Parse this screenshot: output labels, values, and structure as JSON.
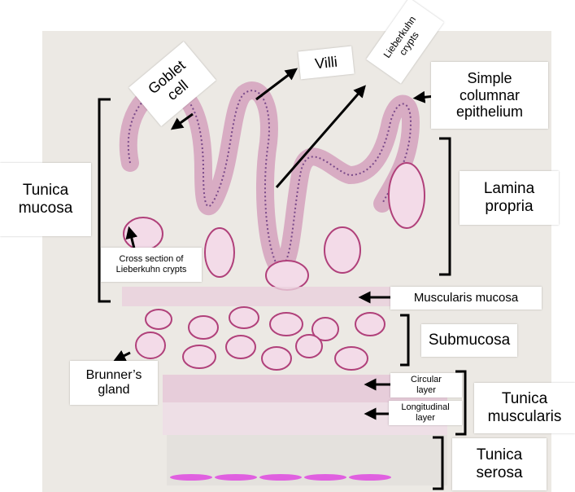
{
  "labels": {
    "goblet": "Goblet\ncell",
    "villi": "Villi",
    "crypts": "Lieberkuhn\ncrypts",
    "simple_columnar": "Simple\ncolumnar\nepithelium",
    "tunica_mucosa": "Tunica\nmucosa",
    "lamina_propria": "Lamina\npropria",
    "cross_section": "Cross section of\nLieberkuhn  crypts",
    "muscularis_mucosa": "Muscularis mucosa",
    "submucosa": "Submucosa",
    "brunner": "Brunner’s\ngland",
    "circular": "Circular\nlayer",
    "longitudinal": "Longitudinal\nlayer",
    "tunica_muscularis": "Tunica\nmuscularis",
    "tunica_serosa": "Tunica\nserosa"
  },
  "colors": {
    "tissue_fill": "#f3dbe8",
    "tissue_stroke": "#b0407a",
    "nucleus": "#3a3a9a",
    "serosa_band": "#e060e0",
    "arrow": "#000000"
  }
}
